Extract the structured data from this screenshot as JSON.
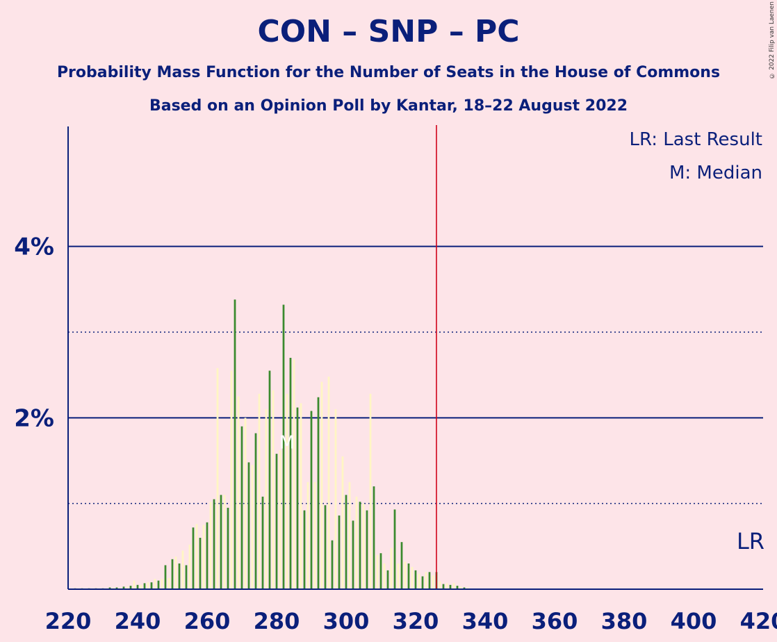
{
  "title": "CON – SNP – PC",
  "subtitle1": "Probability Mass Function for the Number of Seats in the House of Commons",
  "subtitle2": "Based on an Opinion Poll by Kantar, 18–22 August 2022",
  "copyright": "© 2022 Filip van Laenen",
  "legend": {
    "lr": "LR: Last Result",
    "median": "M: Median"
  },
  "lr_marker": "LR",
  "median_marker": "M",
  "colors": {
    "background": "#fde4e8",
    "axis": "#0a1f7a",
    "green": "#3a8a2e",
    "cream": "#fff6c4",
    "lastResult": "#d0021b"
  },
  "chart_data": {
    "type": "bar",
    "xlim": [
      220,
      420
    ],
    "ylim": [
      0,
      5.4
    ],
    "x_ticks": [
      220,
      240,
      260,
      280,
      300,
      320,
      340,
      360,
      380,
      400,
      420
    ],
    "y_ticks": [
      {
        "value": 2,
        "label": "2%"
      },
      {
        "value": 4,
        "label": "4%"
      }
    ],
    "last_result": 326,
    "median": 283,
    "unit": "%",
    "series": [
      {
        "color": "green",
        "x": [
          222,
          224,
          226,
          228,
          230,
          232,
          234,
          236,
          238,
          240,
          242,
          244,
          246,
          248,
          250,
          252,
          254,
          256,
          258,
          260,
          262,
          264,
          266,
          268,
          270,
          272,
          274,
          276,
          278,
          280,
          282,
          284,
          286,
          288,
          290,
          292,
          294,
          296,
          298,
          300,
          302,
          304,
          306,
          308,
          310,
          312,
          314,
          316,
          318,
          320,
          322,
          324,
          326,
          328,
          330,
          332,
          334
        ],
        "values": [
          0.01,
          0.01,
          0.01,
          0.01,
          0.01,
          0.02,
          0.02,
          0.03,
          0.04,
          0.05,
          0.07,
          0.08,
          0.1,
          0.28,
          0.35,
          0.3,
          0.28,
          0.72,
          0.6,
          0.78,
          1.05,
          1.1,
          0.95,
          3.38,
          1.9,
          1.48,
          1.82,
          1.08,
          2.55,
          1.58,
          3.32,
          2.7,
          2.12,
          0.92,
          2.08,
          2.24,
          0.98,
          0.57,
          0.86,
          1.1,
          0.8,
          1.02,
          0.92,
          1.2,
          0.42,
          0.22,
          0.93,
          0.55,
          0.3,
          0.22,
          0.15,
          0.2,
          0.2,
          0.06,
          0.05,
          0.04,
          0.02
        ]
      },
      {
        "color": "cream",
        "x": [
          223,
          225,
          227,
          229,
          231,
          233,
          235,
          237,
          239,
          241,
          243,
          245,
          247,
          249,
          251,
          253,
          255,
          257,
          259,
          261,
          263,
          265,
          267,
          269,
          271,
          273,
          275,
          277,
          279,
          281,
          283,
          285,
          287,
          289,
          291,
          293,
          295,
          297,
          299,
          301,
          303,
          305,
          307,
          309,
          311,
          313,
          315,
          317,
          319,
          321,
          323,
          325,
          327,
          329,
          331,
          333,
          335
        ],
        "values": [
          0.01,
          0.01,
          0.01,
          0.01,
          0.01,
          0.02,
          0.02,
          0.03,
          0.1,
          0.05,
          0.08,
          0.12,
          0.12,
          0.13,
          0.38,
          0.45,
          0.52,
          0.76,
          0.75,
          1.02,
          2.58,
          1.1,
          2.55,
          2.25,
          2.0,
          1.45,
          2.28,
          2.1,
          2.32,
          1.62,
          2.28,
          2.68,
          2.17,
          1.25,
          1.25,
          2.42,
          2.48,
          2.1,
          1.55,
          1.25,
          1.08,
          1.0,
          2.28,
          0.4,
          0.3,
          0.48,
          0.3,
          0.32,
          0.26,
          0.18,
          0.2,
          0.16,
          0.09,
          0.07,
          0.07,
          0.03,
          0.02
        ]
      }
    ]
  }
}
